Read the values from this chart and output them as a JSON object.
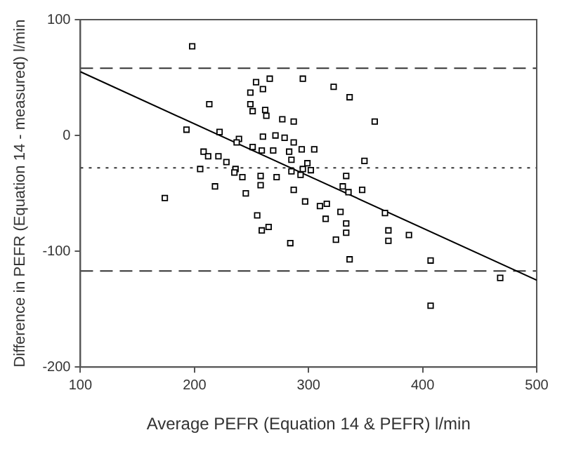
{
  "chart_data": {
    "type": "scatter",
    "xlabel": "Average PEFR (Equation 14 & PEFR) l/min",
    "ylabel": "Difference in PEFR (Equation 14 - measured) l/min",
    "xlim": [
      100,
      500
    ],
    "xticks": [
      100,
      200,
      300,
      400,
      500
    ],
    "ylim": [
      -200,
      100
    ],
    "yticks": [
      100,
      0,
      -100,
      -200
    ],
    "legend": false,
    "series": [
      {
        "marker": "square",
        "color": "#000000",
        "x": [
          198,
          213,
          193,
          254,
          266,
          249,
          260,
          295,
          322,
          336,
          249,
          251,
          262,
          263,
          277,
          287,
          222,
          239,
          237,
          260,
          271,
          279,
          287,
          251,
          259,
          269,
          283,
          294,
          305,
          208,
          212,
          221,
          228,
          285,
          299,
          205,
          236,
          235,
          242,
          258,
          272,
          285,
          295,
          293,
          302,
          333,
          218,
          245,
          258,
          287,
          297,
          310,
          316,
          328,
          330,
          335,
          174,
          255,
          349,
          358,
          347,
          367,
          259,
          265,
          284,
          315,
          333,
          333,
          324,
          336,
          370,
          370,
          388,
          407,
          407,
          468
        ],
        "values": [
          77,
          27,
          5,
          46,
          49,
          37,
          40,
          49,
          42,
          33,
          27,
          21,
          22,
          17,
          14,
          12,
          3,
          -3,
          -6,
          -1,
          0,
          -2,
          -6,
          -10,
          -13,
          -13,
          -14,
          -12,
          -12,
          -14,
          -18,
          -18,
          -23,
          -21,
          -24,
          -29,
          -29,
          -32,
          -36,
          -35,
          -36,
          -31,
          -29,
          -34,
          -30,
          -35,
          -44,
          -50,
          -43,
          -47,
          -57,
          -61,
          -59,
          -66,
          -44,
          -49,
          -54,
          -69,
          -22,
          12,
          -47,
          -67,
          -82,
          -79,
          -93,
          -72,
          -76,
          -84,
          -90,
          -107,
          -82,
          -91,
          -86,
          -108,
          -147,
          -123
        ]
      },
      {
        "type": "line",
        "color": "#000000",
        "x": [
          100,
          500
        ],
        "values": [
          55,
          -125
        ]
      }
    ],
    "ref_lines": [
      {
        "axis": "y",
        "value": 58,
        "line_style": "dashed",
        "color": "#333333"
      },
      {
        "axis": "y",
        "value": -28,
        "line_style": "dotted",
        "color": "#333333"
      },
      {
        "axis": "y",
        "value": -117,
        "line_style": "dashed",
        "color": "#333333"
      }
    ]
  }
}
